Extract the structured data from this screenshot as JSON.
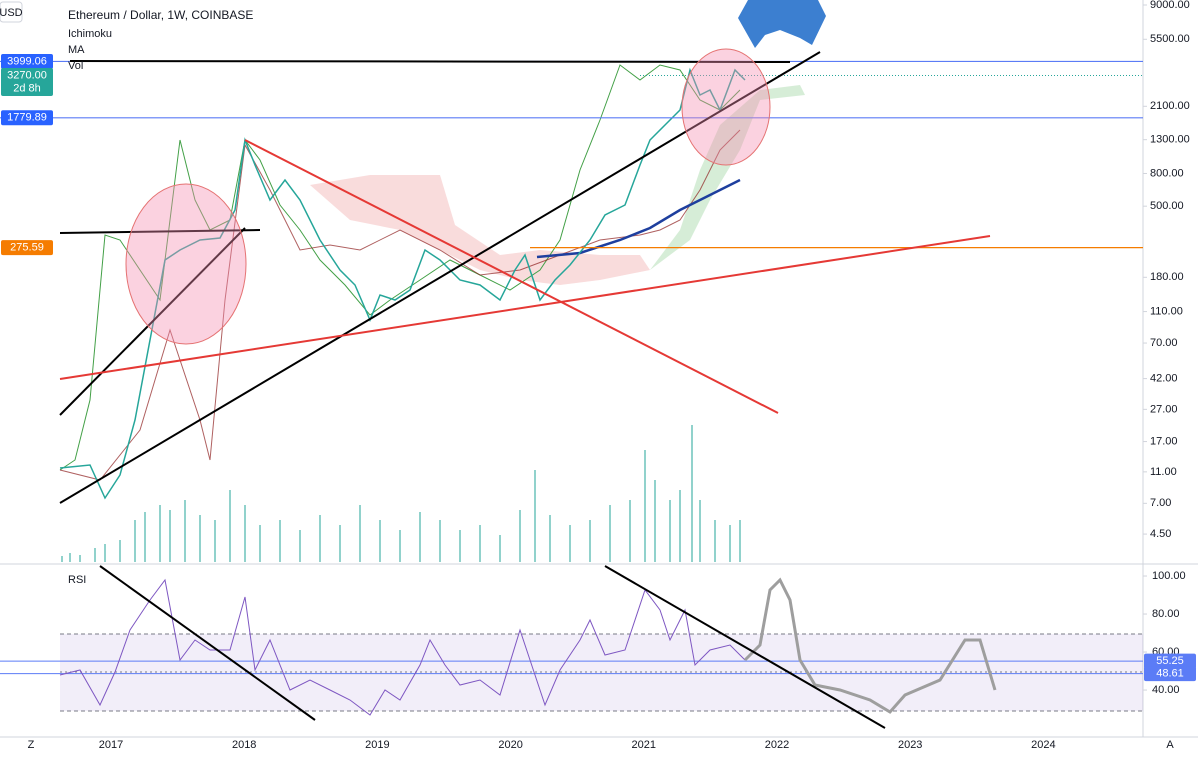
{
  "header": {
    "symbol": "Ethereum / Dollar, 1W, COINBASE",
    "indicators": [
      "Ichimoku",
      "MA",
      "Vol"
    ],
    "currency": "USD"
  },
  "price_axis": {
    "log": true,
    "range": [
      2.97,
      9670
    ],
    "ticks": [
      {
        "value": 9000,
        "label": "9000.00"
      },
      {
        "value": 5500,
        "label": "5500.00"
      },
      {
        "value": 2100,
        "label": "2100.00"
      },
      {
        "value": 1300,
        "label": "1300.00"
      },
      {
        "value": 800,
        "label": "800.00"
      },
      {
        "value": 500,
        "label": "500.00"
      },
      {
        "value": 180,
        "label": "180.00"
      },
      {
        "value": 110,
        "label": "110.00"
      },
      {
        "value": 70,
        "label": "70.00"
      },
      {
        "value": 42,
        "label": "42.00"
      },
      {
        "value": 27,
        "label": "27.00"
      },
      {
        "value": 17,
        "label": "17.00"
      },
      {
        "value": 11,
        "label": "11.00"
      },
      {
        "value": 7,
        "label": "7.00"
      },
      {
        "value": 4.5,
        "label": "4.50"
      }
    ],
    "badges": [
      {
        "value": 3999.06,
        "label": "3999.06",
        "color": "#2962ff"
      },
      {
        "value": 3270,
        "label": "3270.00",
        "sub": "2d 8h",
        "color": "#26a69a"
      },
      {
        "value": 1779.89,
        "label": "1779.89",
        "color": "#2962ff"
      },
      {
        "value": 275.59,
        "label": "275.59",
        "color": "#f57c00"
      }
    ]
  },
  "rsi_pane": {
    "title": "RSI",
    "range": [
      17.4,
      105.8
    ],
    "ticks": [
      {
        "value": 100,
        "label": "100.00"
      },
      {
        "value": 80,
        "label": "80.00"
      },
      {
        "value": 60,
        "label": "60.00"
      },
      {
        "value": 40,
        "label": "40.00"
      }
    ],
    "badges": [
      {
        "value": 55.25,
        "label": "55.25"
      },
      {
        "value": 48.61,
        "label": "48.61"
      }
    ]
  },
  "time_axis": [
    "2017",
    "2018",
    "2019",
    "2020",
    "2021",
    "2022",
    "2023",
    "2024"
  ],
  "buttons": [
    "Z",
    "A"
  ]
}
